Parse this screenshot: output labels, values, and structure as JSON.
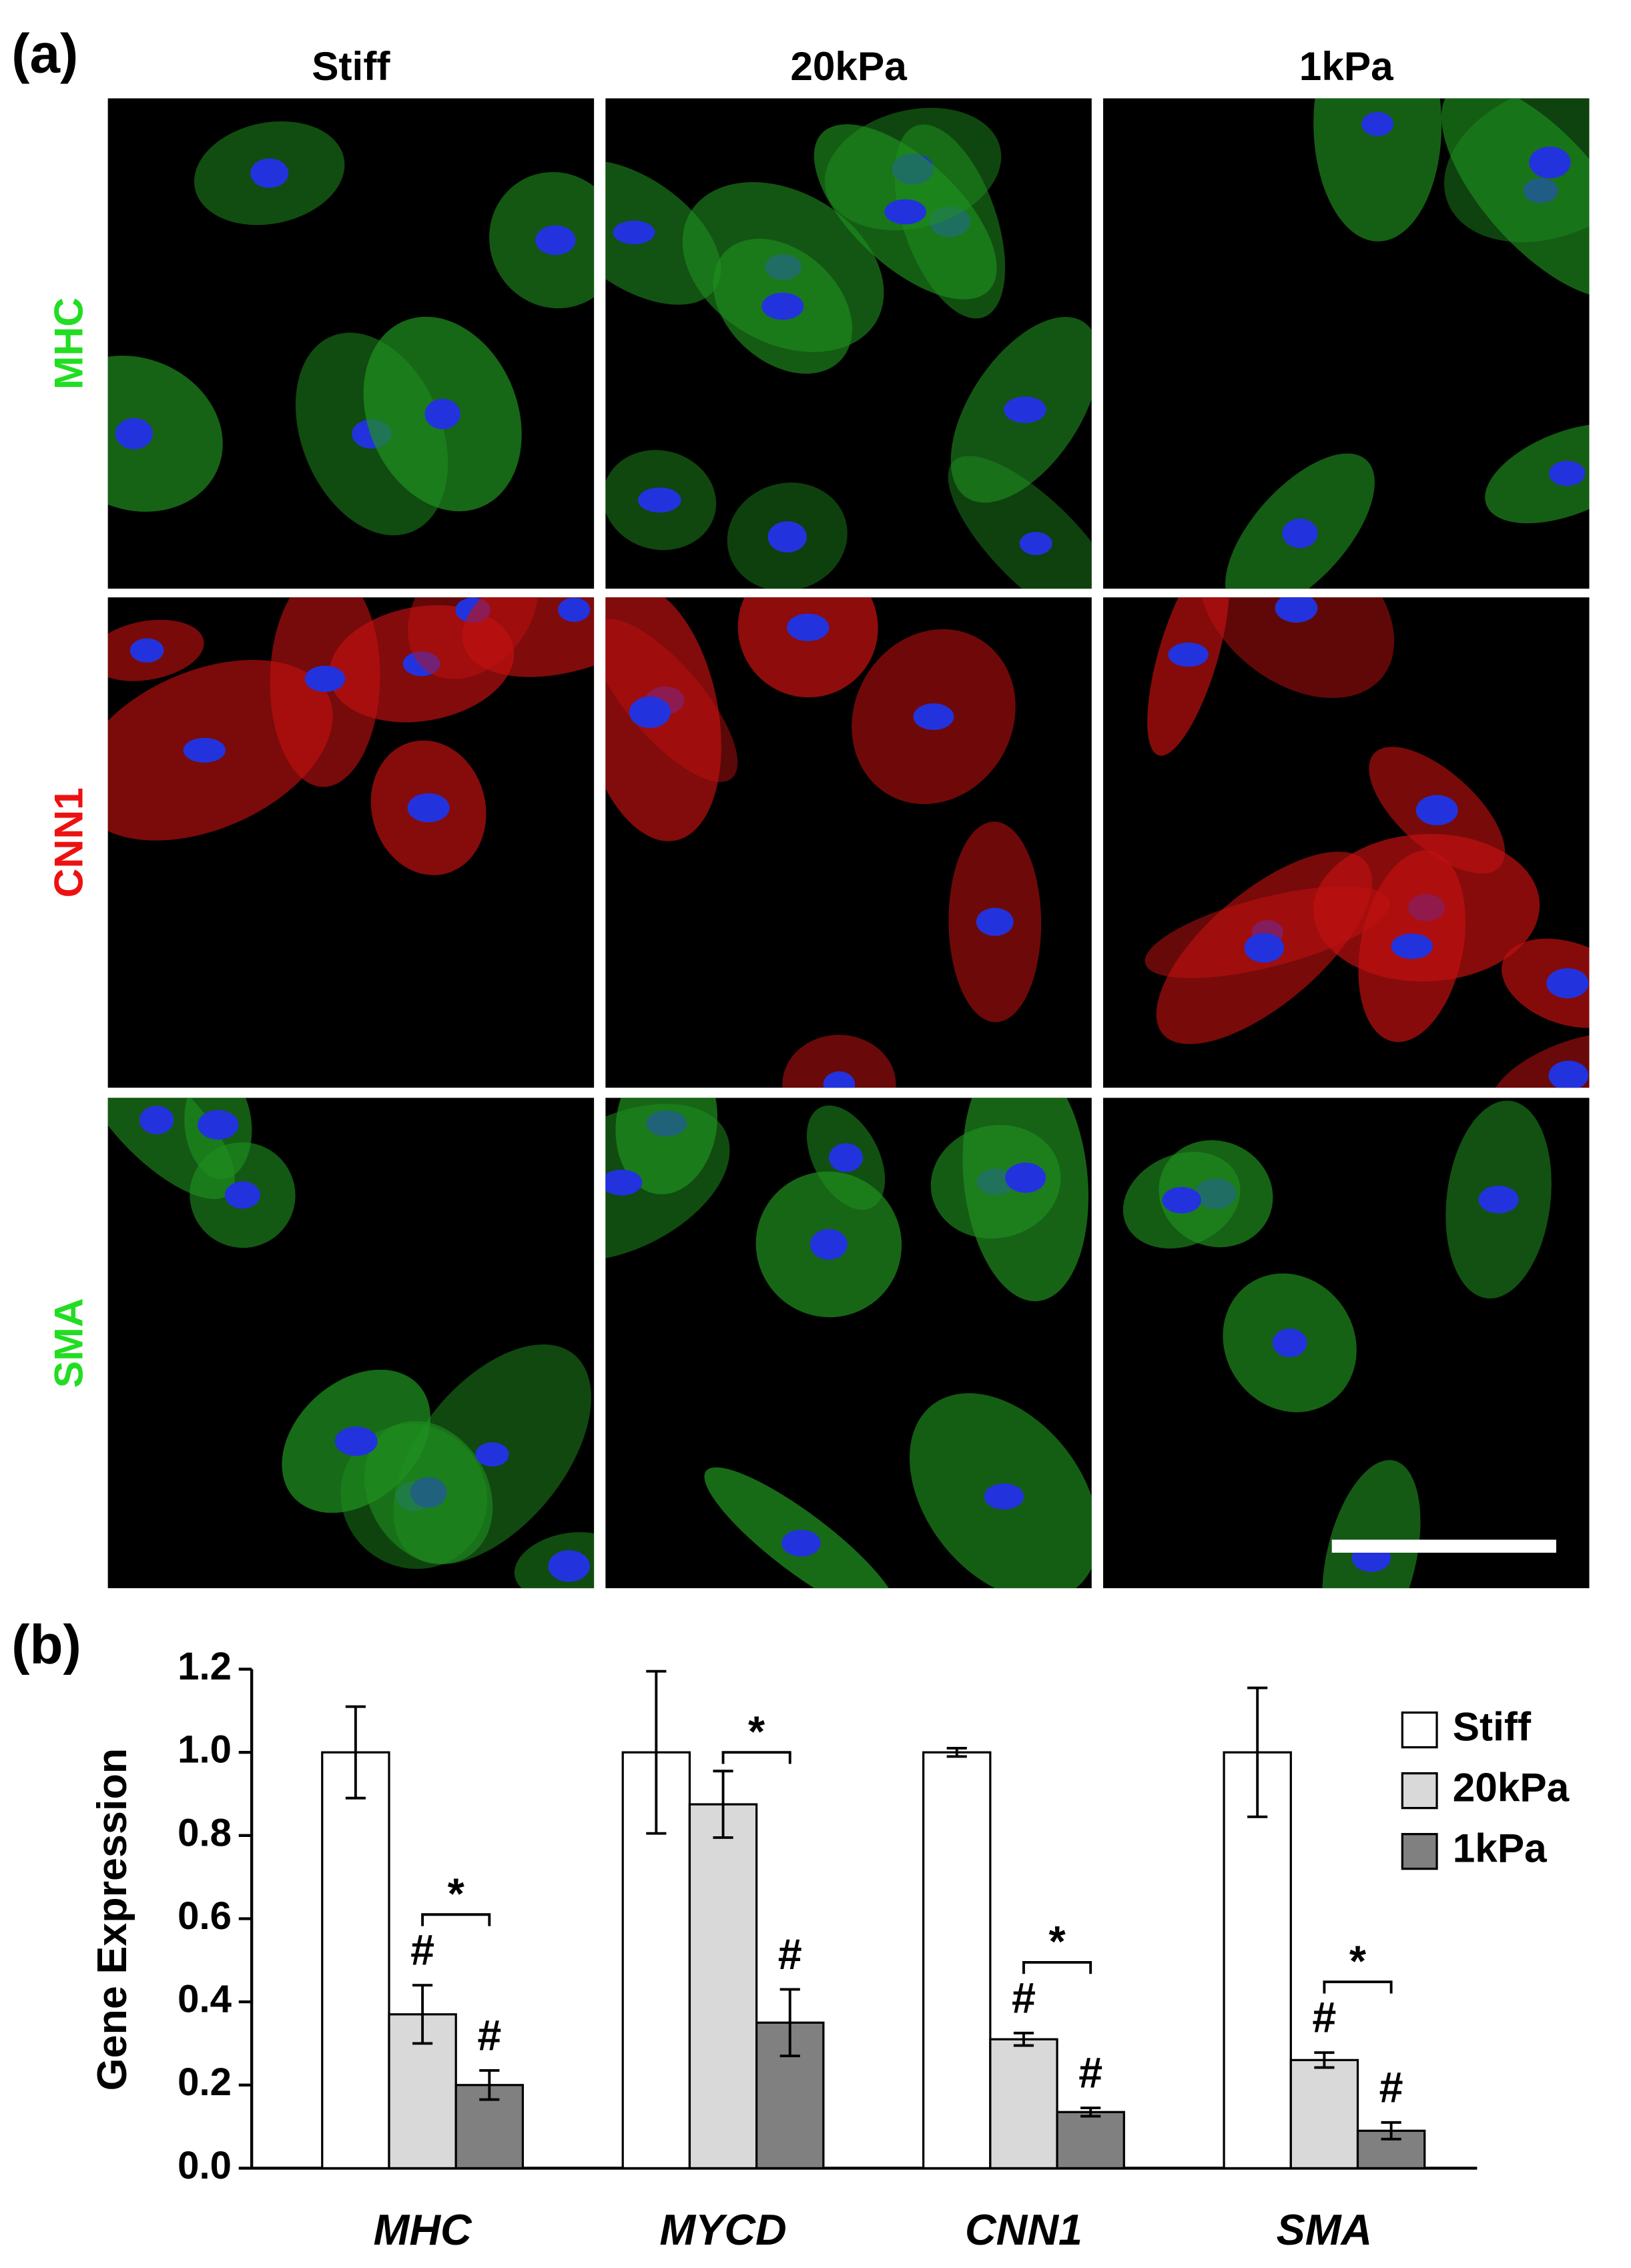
{
  "figure_a": {
    "panel_label": "(a)",
    "columns": [
      "Stiff",
      "20kPa",
      "1kPa"
    ],
    "rows": [
      {
        "label": "MHC",
        "color": "#22dd22"
      },
      {
        "label": "CNN1",
        "color": "#ee1111"
      },
      {
        "label": "SMA",
        "color": "#22dd22"
      }
    ]
  },
  "chart_data": {
    "type": "bar",
    "panel_label": "(b)",
    "y_label": "Gene Expression",
    "categories": [
      "MHC",
      "MYCD",
      "CNN1",
      "SMA"
    ],
    "series": [
      {
        "name": "Stiff",
        "color": "#ffffff",
        "values": [
          1.0,
          1.0,
          1.0,
          1.0
        ],
        "errors": [
          0.11,
          0.195,
          0.01,
          0.155
        ]
      },
      {
        "name": "20kPa",
        "color": "#d9d9d9",
        "values": [
          0.37,
          0.875,
          0.31,
          0.26
        ],
        "errors": [
          0.07,
          0.08,
          0.015,
          0.018
        ]
      },
      {
        "name": "1kPa",
        "color": "#808080",
        "values": [
          0.2,
          0.35,
          0.135,
          0.09
        ],
        "errors": [
          0.035,
          0.08,
          0.01,
          0.02
        ]
      }
    ],
    "ylim": [
      0,
      1.2
    ],
    "yticks": [
      {
        "value": 0,
        "label": "0.0"
      },
      0.2,
      0.4,
      0.6,
      0.8,
      {
        "value": 1,
        "label": "1.0"
      },
      1.2
    ],
    "markers": [
      {
        "text": "#",
        "category": 0,
        "series": 1
      },
      {
        "text": "#",
        "category": 0,
        "series": 2
      },
      {
        "text": "#",
        "category": 1,
        "series": 2
      },
      {
        "text": "#",
        "category": 2,
        "series": 1
      },
      {
        "text": "#",
        "category": 2,
        "series": 2
      },
      {
        "text": "#",
        "category": 3,
        "series": 1
      },
      {
        "text": "#",
        "category": 3,
        "series": 2
      }
    ],
    "brackets": [
      {
        "text": "*",
        "category": 0,
        "from": 1,
        "to": 2
      },
      {
        "text": "*",
        "category": 1,
        "from": 1,
        "to": 2
      },
      {
        "text": "*",
        "category": 2,
        "from": 1,
        "to": 2
      },
      {
        "text": "*",
        "category": 3,
        "from": 1,
        "to": 2
      }
    ],
    "legend": "upper right"
  }
}
